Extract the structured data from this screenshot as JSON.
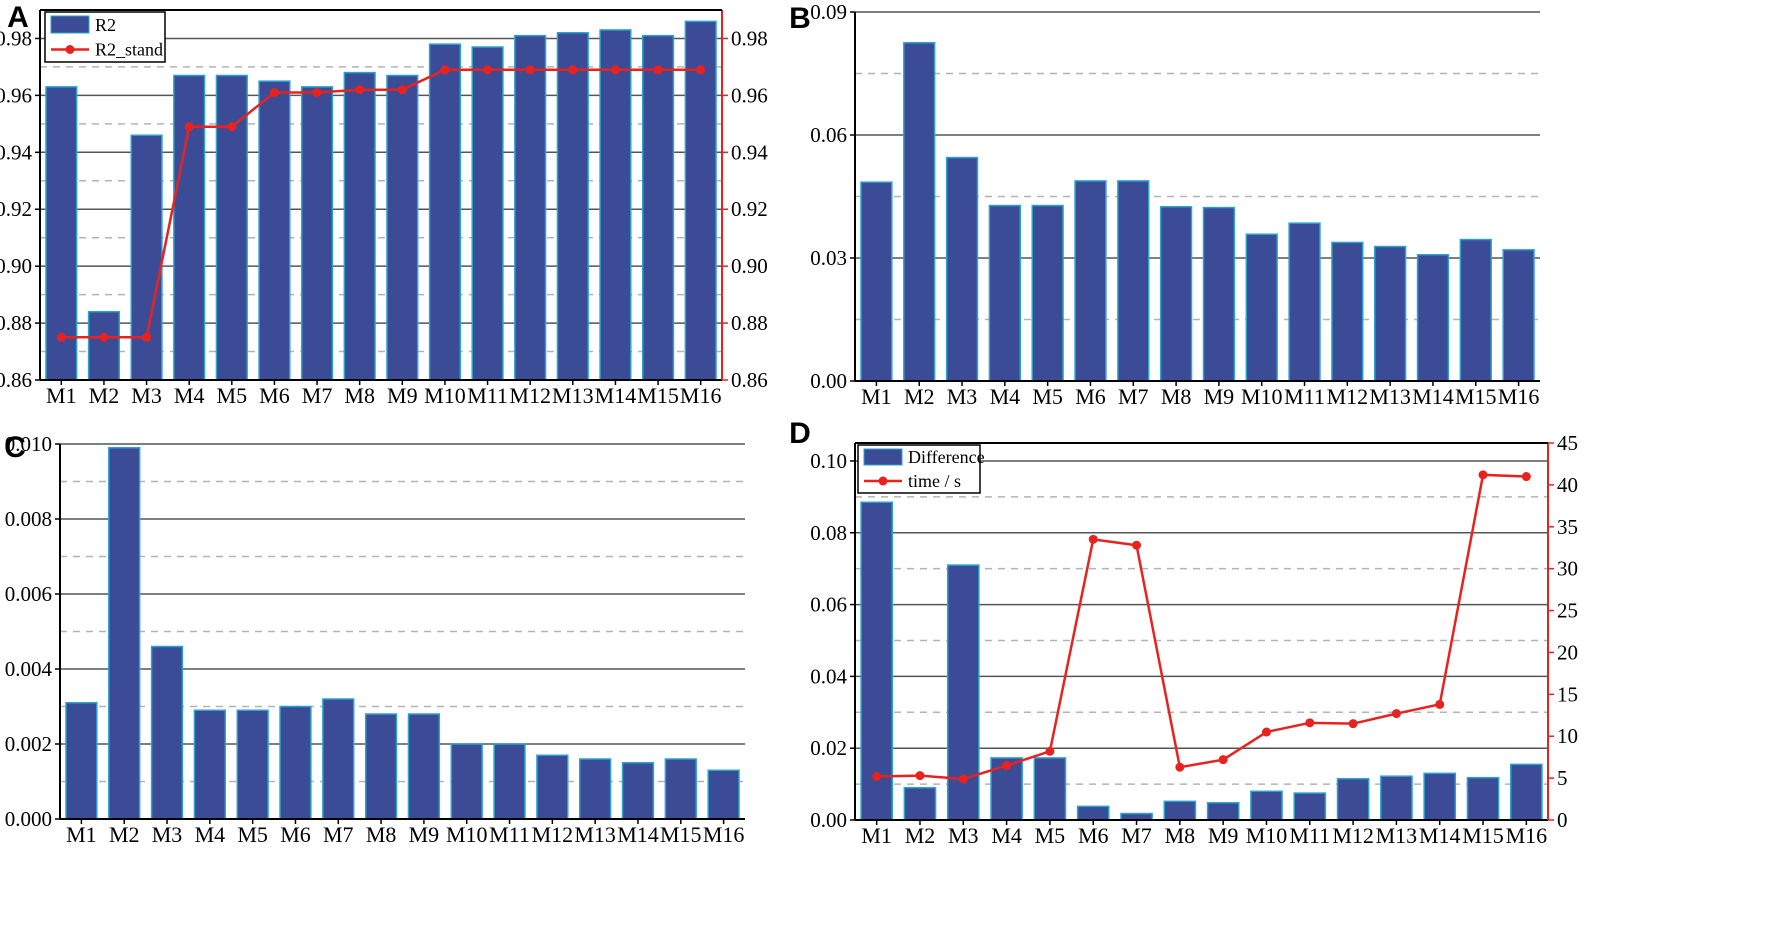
{
  "chart_data": [
    {
      "panel_label": "A",
      "type": "bar",
      "categories": [
        "M1",
        "M2",
        "M3",
        "M4",
        "M5",
        "M6",
        "M7",
        "M8",
        "M9",
        "M10",
        "M11",
        "M12",
        "M13",
        "M14",
        "M15",
        "M16"
      ],
      "series": [
        {
          "name": "R2",
          "kind": "bar",
          "axis": "left",
          "values": [
            0.963,
            0.884,
            0.946,
            0.967,
            0.967,
            0.965,
            0.963,
            0.968,
            0.967,
            0.978,
            0.977,
            0.981,
            0.982,
            0.983,
            0.981,
            0.986
          ]
        },
        {
          "name": "R2_stand",
          "kind": "line",
          "axis": "right",
          "values": [
            0.875,
            0.875,
            0.875,
            0.949,
            0.949,
            0.961,
            0.961,
            0.962,
            0.962,
            0.969,
            0.969,
            0.969,
            0.969,
            0.969,
            0.969,
            0.969
          ]
        }
      ],
      "ylim": [
        0.86,
        0.99
      ],
      "yticks": [
        "0.86",
        "0.88",
        "0.90",
        "0.92",
        "0.94",
        "0.96",
        "0.98"
      ],
      "ylim_right": [
        0.86,
        0.99
      ],
      "yticks_right": [
        "0.86",
        "0.88",
        "0.90",
        "0.92",
        "0.94",
        "0.96",
        "0.98"
      ],
      "legend": [
        "R2",
        "R2_stand"
      ],
      "legend_position": "top-left"
    },
    {
      "panel_label": "B",
      "type": "bar",
      "categories": [
        "M1",
        "M2",
        "M3",
        "M4",
        "M5",
        "M6",
        "M7",
        "M8",
        "M9",
        "M10",
        "M11",
        "M12",
        "M13",
        "M14",
        "M15",
        "M16"
      ],
      "series": [
        {
          "name": "",
          "kind": "bar",
          "axis": "left",
          "values": [
            0.0485,
            0.0825,
            0.0545,
            0.0428,
            0.0428,
            0.0488,
            0.0488,
            0.0425,
            0.0423,
            0.0358,
            0.0385,
            0.0338,
            0.0328,
            0.0308,
            0.0345,
            0.032
          ]
        }
      ],
      "ylim": [
        0,
        0.09
      ],
      "yticks": [
        "0.00",
        "0.03",
        "0.06",
        "0.09"
      ]
    },
    {
      "panel_label": "C",
      "type": "bar",
      "categories": [
        "M1",
        "M2",
        "M3",
        "M4",
        "M5",
        "M6",
        "M7",
        "M8",
        "M9",
        "M10",
        "M11",
        "M12",
        "M13",
        "M14",
        "M15",
        "M16"
      ],
      "series": [
        {
          "name": "",
          "kind": "bar",
          "axis": "left",
          "values": [
            0.0031,
            0.0099,
            0.0046,
            0.0029,
            0.0029,
            0.003,
            0.0032,
            0.0028,
            0.0028,
            0.002,
            0.002,
            0.0017,
            0.0016,
            0.0015,
            0.0016,
            0.0013
          ]
        }
      ],
      "ylim": [
        0,
        0.01
      ],
      "yticks": [
        "0.000",
        "0.002",
        "0.004",
        "0.006",
        "0.008",
        "0.010"
      ]
    },
    {
      "panel_label": "D",
      "type": "bar",
      "categories": [
        "M1",
        "M2",
        "M3",
        "M4",
        "M5",
        "M6",
        "M7",
        "M8",
        "M9",
        "M10",
        "M11",
        "M12",
        "M13",
        "M14",
        "M15",
        "M16"
      ],
      "series": [
        {
          "name": "Difference",
          "kind": "bar",
          "axis": "left",
          "values": [
            0.0885,
            0.009,
            0.071,
            0.0173,
            0.0173,
            0.0038,
            0.0018,
            0.0052,
            0.0048,
            0.008,
            0.0075,
            0.0115,
            0.0122,
            0.013,
            0.0118,
            0.0155
          ]
        },
        {
          "name": "time / s",
          "kind": "line",
          "axis": "right",
          "values": [
            5.2,
            5.3,
            4.9,
            6.5,
            8.2,
            33.5,
            32.8,
            6.3,
            7.2,
            10.5,
            11.6,
            11.5,
            12.7,
            13.8,
            41.2,
            41.0
          ]
        }
      ],
      "ylim": [
        0,
        0.105
      ],
      "yticks": [
        "0.00",
        "0.02",
        "0.04",
        "0.06",
        "0.08",
        "0.10"
      ],
      "ylim_right": [
        0,
        45
      ],
      "yticks_right": [
        "0",
        "5",
        "10",
        "15",
        "20",
        "25",
        "30",
        "35",
        "40",
        "45"
      ],
      "legend": [
        "Difference",
        "time / s"
      ],
      "legend_position": "top-left"
    }
  ],
  "colors": {
    "bar_fill": "#3c4b96",
    "bar_edge": "#2aa3d1",
    "line": "#e8231f",
    "grid_major": "#555555",
    "grid_minor": "#b3b3b3",
    "axis": "#000000"
  }
}
